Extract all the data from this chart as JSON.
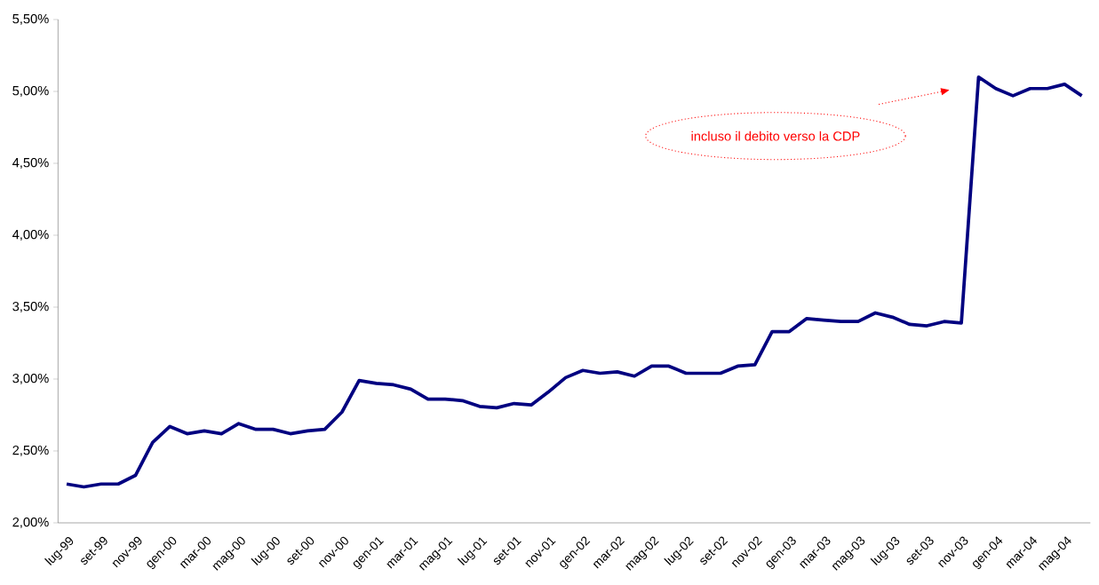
{
  "chart_data": {
    "type": "line",
    "categories": [
      "lug-99",
      null,
      "set-99",
      null,
      "nov-99",
      null,
      "gen-00",
      null,
      "mar-00",
      null,
      "mag-00",
      null,
      "lug-00",
      null,
      "set-00",
      null,
      "nov-00",
      null,
      "gen-01",
      null,
      "mar-01",
      null,
      "mag-01",
      null,
      "lug-01",
      null,
      "set-01",
      null,
      "nov-01",
      null,
      "gen-02",
      null,
      "mar-02",
      null,
      "mag-02",
      null,
      "lug-02",
      null,
      "set-02",
      null,
      "nov-02",
      null,
      "gen-03",
      null,
      "mar-03",
      null,
      "mag-03",
      null,
      "lug-03",
      null,
      "set-03",
      null,
      "nov-03",
      null,
      "gen-04",
      null,
      "mar-04",
      null,
      "mag-04",
      null
    ],
    "series": [
      {
        "color": "#000080",
        "values": [
          2.27,
          2.25,
          2.27,
          2.27,
          2.33,
          2.56,
          2.67,
          2.62,
          2.64,
          2.62,
          2.69,
          2.65,
          2.65,
          2.62,
          2.64,
          2.65,
          2.77,
          2.99,
          2.97,
          2.96,
          2.93,
          2.86,
          2.86,
          2.85,
          2.81,
          2.8,
          2.83,
          2.82,
          2.91,
          3.01,
          3.06,
          3.04,
          3.05,
          3.02,
          3.09,
          3.09,
          3.04,
          3.04,
          3.04,
          3.09,
          3.1,
          3.33,
          3.33,
          3.42,
          3.41,
          3.4,
          3.4,
          3.46,
          3.43,
          3.38,
          3.37,
          3.4,
          3.39,
          5.1,
          5.02,
          4.97,
          5.02,
          5.02,
          5.05,
          4.97
        ]
      }
    ],
    "ylim": [
      2,
      5.5
    ],
    "yticks": [
      {
        "value": 2,
        "label": "2,00%"
      },
      {
        "value": 2.5,
        "label": "2,50%"
      },
      {
        "value": 3,
        "label": "3,00%"
      },
      {
        "value": 3.5,
        "label": "3,50%"
      },
      {
        "value": 4,
        "label": "4,00%"
      },
      {
        "value": 4.5,
        "label": "4,50%"
      },
      {
        "value": 5,
        "label": "5,00%"
      },
      {
        "value": 5.5,
        "label": "5,50%"
      }
    ],
    "annotations": [
      "incluso il debito verso la CDP"
    ]
  }
}
